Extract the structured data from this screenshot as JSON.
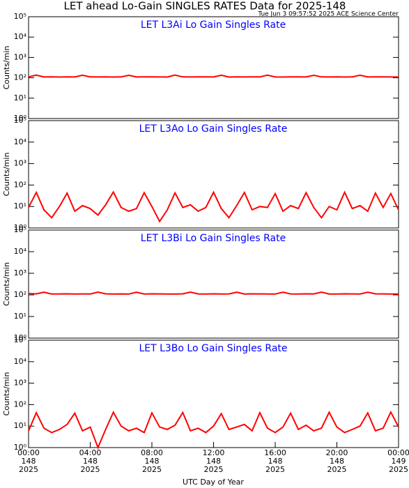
{
  "header": {
    "title": "LET ahead Lo-Gain SINGLES RATES Data for 2025-148",
    "subtitle": "Tue Jun  3 09:57:52 2025 ACE Science Center"
  },
  "x_label": "UTC Day of Year",
  "chart_data": [
    {
      "type": "line",
      "title": "LET L3Ai Lo Gain Singles Rate",
      "ylabel": "Counts/min",
      "log_scale": true,
      "color": "#ff0000",
      "title_color": "#0000ff",
      "xlim": [
        0,
        24
      ],
      "ylim": [
        1,
        100000
      ],
      "yticks": [
        {
          "value": 1,
          "label": "10⁰"
        },
        {
          "value": 10,
          "label": "10¹"
        },
        {
          "value": 100,
          "label": "10²"
        },
        {
          "value": 1000,
          "label": "10³"
        },
        {
          "value": 10000,
          "label": "10⁴"
        },
        {
          "value": 100000,
          "label": "10⁵"
        }
      ],
      "x": [
        0,
        0.5,
        1,
        1.5,
        2,
        2.5,
        3,
        3.5,
        4,
        4.5,
        5,
        5.5,
        6,
        6.5,
        7,
        7.5,
        8,
        8.5,
        9,
        9.5,
        10,
        10.5,
        11,
        11.5,
        12,
        12.5,
        13,
        13.5,
        14,
        14.5,
        15,
        15.5,
        16,
        16.5,
        17,
        17.5,
        18,
        18.5,
        19,
        19.5,
        20,
        20.5,
        21,
        21.5,
        22,
        22.5,
        23,
        23.5,
        24
      ],
      "values": [
        112,
        135,
        110,
        111,
        109,
        112,
        110,
        134,
        111,
        110,
        112,
        109,
        111,
        133,
        110,
        112,
        111,
        110,
        109,
        136,
        111,
        110,
        112,
        111,
        110,
        134,
        109,
        111,
        110,
        112,
        111,
        135,
        110,
        109,
        111,
        112,
        110,
        133,
        111,
        110,
        112,
        109,
        111,
        134,
        110,
        111,
        112,
        110,
        109
      ]
    },
    {
      "type": "line",
      "title": "LET L3Ao Lo Gain Singles Rate",
      "ylabel": "Counts/min",
      "log_scale": true,
      "color": "#ff0000",
      "title_color": "#0000ff",
      "xlim": [
        0,
        24
      ],
      "ylim": [
        1,
        100000
      ],
      "yticks": [
        {
          "value": 1,
          "label": "10⁰"
        },
        {
          "value": 10,
          "label": "10¹"
        },
        {
          "value": 100,
          "label": "10²"
        },
        {
          "value": 1000,
          "label": "10³"
        },
        {
          "value": 10000,
          "label": "10⁴"
        },
        {
          "value": 100000,
          "label": "10⁵"
        }
      ],
      "x": [
        0,
        0.5,
        1,
        1.5,
        2,
        2.5,
        3,
        3.5,
        4,
        4.5,
        5,
        5.5,
        6,
        6.5,
        7,
        7.5,
        8,
        8.5,
        9,
        9.5,
        10,
        10.5,
        11,
        11.5,
        12,
        12.5,
        13,
        13.5,
        14,
        14.5,
        15,
        15.5,
        16,
        16.5,
        17,
        17.5,
        18,
        18.5,
        19,
        19.5,
        20,
        20.5,
        21,
        21.5,
        22,
        22.5,
        23,
        23.5,
        24
      ],
      "values": [
        9,
        45,
        7,
        3,
        10,
        42,
        6,
        11,
        8,
        4,
        12,
        47,
        9,
        6,
        8,
        44,
        10,
        2,
        7,
        43,
        9,
        12,
        6,
        9,
        46,
        8,
        3,
        11,
        45,
        7,
        10,
        9,
        40,
        6,
        11,
        8,
        44,
        9,
        3,
        10,
        7,
        46,
        8,
        11,
        6,
        42,
        9,
        40,
        7
      ]
    },
    {
      "type": "line",
      "title": "LET L3Bi Lo Gain Singles Rate",
      "ylabel": "Counts/min",
      "log_scale": true,
      "color": "#ff0000",
      "title_color": "#0000ff",
      "xlim": [
        0,
        24
      ],
      "ylim": [
        1,
        100000
      ],
      "yticks": [
        {
          "value": 1,
          "label": "10⁰"
        },
        {
          "value": 10,
          "label": "10¹"
        },
        {
          "value": 100,
          "label": "10²"
        },
        {
          "value": 1000,
          "label": "10³"
        },
        {
          "value": 10000,
          "label": "10⁴"
        },
        {
          "value": 100000,
          "label": "10⁵"
        }
      ],
      "x": [
        0,
        0.5,
        1,
        1.5,
        2,
        2.5,
        3,
        3.5,
        4,
        4.5,
        5,
        5.5,
        6,
        6.5,
        7,
        7.5,
        8,
        8.5,
        9,
        9.5,
        10,
        10.5,
        11,
        11.5,
        12,
        12.5,
        13,
        13.5,
        14,
        14.5,
        15,
        15.5,
        16,
        16.5,
        17,
        17.5,
        18,
        18.5,
        19,
        19.5,
        20,
        20.5,
        21,
        21.5,
        22,
        22.5,
        23,
        23.5,
        24
      ],
      "values": [
        115,
        112,
        134,
        110,
        111,
        112,
        109,
        111,
        110,
        135,
        112,
        110,
        111,
        109,
        133,
        110,
        112,
        111,
        110,
        109,
        112,
        135,
        111,
        110,
        112,
        109,
        111,
        134,
        110,
        112,
        111,
        110,
        109,
        133,
        111,
        110,
        112,
        111,
        135,
        110,
        109,
        112,
        111,
        110,
        134,
        112,
        111,
        110,
        109
      ]
    },
    {
      "type": "line",
      "title": "LET L3Bo Lo Gain Singles Rate",
      "ylabel": "Counts/min",
      "log_scale": true,
      "color": "#ff0000",
      "title_color": "#0000ff",
      "xlim": [
        0,
        24
      ],
      "ylim": [
        1,
        100000
      ],
      "yticks": [
        {
          "value": 1,
          "label": "10⁰"
        },
        {
          "value": 10,
          "label": "10¹"
        },
        {
          "value": 100,
          "label": "10²"
        },
        {
          "value": 1000,
          "label": "10³"
        },
        {
          "value": 10000,
          "label": "10⁴"
        },
        {
          "value": 100000,
          "label": "10⁵"
        }
      ],
      "xticks": [
        {
          "value": 0,
          "label": [
            "00:00",
            "148",
            "2025"
          ]
        },
        {
          "value": 4,
          "label": [
            "04:00",
            "148",
            "2025"
          ]
        },
        {
          "value": 8,
          "label": [
            "08:00",
            "148",
            "2025"
          ]
        },
        {
          "value": 12,
          "label": [
            "12:00",
            "148",
            "2025"
          ]
        },
        {
          "value": 16,
          "label": [
            "16:00",
            "148",
            "2025"
          ]
        },
        {
          "value": 20,
          "label": [
            "20:00",
            "148",
            "2025"
          ]
        },
        {
          "value": 24,
          "label": [
            "00:00",
            "149",
            "2025"
          ]
        }
      ],
      "x": [
        0,
        0.5,
        1,
        1.5,
        2,
        2.5,
        3,
        3.5,
        4,
        4.5,
        5,
        5.5,
        6,
        6.5,
        7,
        7.5,
        8,
        8.5,
        9,
        9.5,
        10,
        10.5,
        11,
        11.5,
        12,
        12.5,
        13,
        13.5,
        14,
        14.5,
        15,
        15.5,
        16,
        16.5,
        17,
        17.5,
        18,
        18.5,
        19,
        19.5,
        20,
        20.5,
        21,
        21.5,
        22,
        22.5,
        23,
        23.5,
        24
      ],
      "values": [
        6,
        42,
        8,
        5,
        7,
        12,
        40,
        6,
        9,
        1,
        7,
        44,
        10,
        6,
        8,
        5,
        41,
        9,
        7,
        11,
        43,
        6,
        8,
        5,
        10,
        38,
        7,
        9,
        12,
        6,
        42,
        8,
        5,
        9,
        40,
        7,
        11,
        6,
        8,
        44,
        9,
        5,
        7,
        10,
        41,
        6,
        8,
        45,
        9
      ]
    }
  ]
}
